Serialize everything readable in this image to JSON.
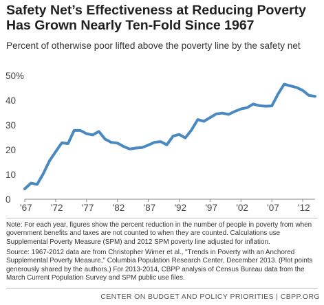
{
  "title_line1": "Safety Net’s Effectiveness at Reducing Poverty",
  "title_line2": "Has Grown Nearly Ten-Fold Since 1967",
  "subtitle": "Percent of otherwise poor lifted above the poverty line by the safety net",
  "note": "Note: For each year, figures show the percent reduction in the number of people in poverty from when government benefits and taxes are not counted to when they are counted. Calculations use Supplemental Poverty Measure (SPM) and 2012 SPM poverty line adjusted for inflation.",
  "source": "Source: 1967-2012 data are from Christopher Wimer et al., \"Trends in Poverty with an Anchored Supplemental Poverty Measure,\" Columbia Population Research Center, December 2013. (Plot points generously shared by the authors.) For 2013-2014, CBPP analysis of Census Bureau data from the March Current Population Survey and SPM public use files.",
  "footer": "CENTER ON BUDGET AND POLICY PRIORITIES | CBPP.ORG",
  "chart_data": {
    "type": "line",
    "title": "",
    "xlabel": "",
    "ylabel": "",
    "ylim": [
      0,
      50
    ],
    "xlim": [
      1967,
      2014
    ],
    "grid": false,
    "line_color": "#4a88c0",
    "y_ticks": [
      0,
      10,
      20,
      30,
      40,
      50
    ],
    "y_tick_labels": [
      "0",
      "10",
      "20",
      "30",
      "40",
      "50%"
    ],
    "x_ticks": [
      1967,
      1972,
      1977,
      1982,
      1987,
      1992,
      1997,
      2002,
      2007,
      2012
    ],
    "x_tick_labels": [
      "'67",
      "'72",
      "'77",
      "'82",
      "'87",
      "'92",
      "'97",
      "'02",
      "'07",
      "'12"
    ],
    "x": [
      1967,
      1968,
      1969,
      1970,
      1971,
      1972,
      1973,
      1974,
      1975,
      1976,
      1977,
      1978,
      1979,
      1980,
      1981,
      1982,
      1983,
      1984,
      1985,
      1986,
      1987,
      1988,
      1989,
      1990,
      1991,
      1992,
      1993,
      1994,
      1995,
      1996,
      1997,
      1998,
      1999,
      2000,
      2001,
      2002,
      2003,
      2004,
      2005,
      2006,
      2007,
      2008,
      2009,
      2010,
      2011,
      2012,
      2013,
      2014
    ],
    "y": [
      4.2,
      6.5,
      6.0,
      10.3,
      15.5,
      19.2,
      22.8,
      22.5,
      27.8,
      27.8,
      26.5,
      26.0,
      27.4,
      24.3,
      23.0,
      22.7,
      21.3,
      20.3,
      20.7,
      20.9,
      21.9,
      23.0,
      23.3,
      22.0,
      25.5,
      26.2,
      24.8,
      28.0,
      32.2,
      31.5,
      33.0,
      34.5,
      34.8,
      34.3,
      35.5,
      36.5,
      37.0,
      38.5,
      37.8,
      37.6,
      37.7,
      42.5,
      46.5,
      45.8,
      45.2,
      44.0,
      42.0,
      41.6
    ]
  }
}
